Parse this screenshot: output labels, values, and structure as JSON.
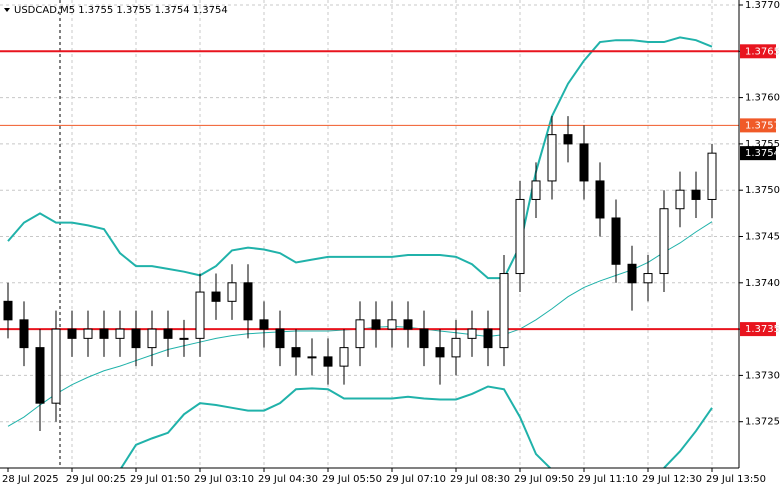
{
  "chart_data": {
    "type": "candlestick",
    "title": "USDCAD,M5 1.3755 1.3755 1.3754 1.3754",
    "categories": [
      "28 Jul 2025",
      null,
      null,
      null,
      "29 Jul 00:25",
      null,
      null,
      null,
      "29 Jul 01:50",
      null,
      null,
      null,
      "29 Jul 03:10",
      null,
      null,
      null,
      "29 Jul 04:30",
      null,
      null,
      null,
      "29 Jul 05:50",
      null,
      null,
      null,
      "29 Jul 07:10",
      null,
      null,
      null,
      "29 Jul 08:30",
      null,
      null,
      null,
      "29 Jul 09:50",
      null,
      null,
      null,
      "29 Jul 11:10",
      null,
      null,
      null,
      "29 Jul 12:30",
      null,
      null,
      null,
      "29 Jul 13:50"
    ],
    "open": [
      1.3738,
      1.3736,
      1.3733,
      1.3727,
      1.3735,
      1.3734,
      1.3735,
      1.3734,
      1.3735,
      1.3733,
      1.3735,
      1.3734,
      1.3734,
      1.3739,
      1.3738,
      1.374,
      1.3736,
      1.3735,
      1.3733,
      1.3732,
      1.3732,
      1.3731,
      1.3733,
      1.3736,
      1.3735,
      1.3736,
      1.3735,
      1.3733,
      1.3732,
      1.3734,
      1.3735,
      1.3733,
      1.3741,
      1.3749,
      1.3751,
      1.3756,
      1.3755,
      1.3751,
      1.3747,
      1.3742,
      1.374,
      1.3741,
      1.3748,
      1.375,
      1.3749
    ],
    "high": [
      1.374,
      1.3738,
      1.3735,
      1.3737,
      1.3737,
      1.3737,
      1.3737,
      1.3737,
      1.3737,
      1.3737,
      1.3737,
      1.3736,
      1.3741,
      1.3741,
      1.3742,
      1.3742,
      1.3738,
      1.3737,
      1.3735,
      1.3734,
      1.3734,
      1.3735,
      1.3738,
      1.3738,
      1.3738,
      1.3738,
      1.3737,
      1.3735,
      1.3736,
      1.3737,
      1.3737,
      1.3743,
      1.3751,
      1.3753,
      1.3758,
      1.3758,
      1.3757,
      1.3753,
      1.3749,
      1.3744,
      1.3743,
      1.375,
      1.3752,
      1.3752,
      1.3755
    ],
    "low": [
      1.3734,
      1.3731,
      1.3724,
      1.3725,
      1.3732,
      1.3732,
      1.3732,
      1.3732,
      1.3731,
      1.3731,
      1.3732,
      1.3732,
      1.3732,
      1.3736,
      1.3736,
      1.3734,
      1.3733,
      1.3731,
      1.373,
      1.373,
      1.3729,
      1.3729,
      1.3731,
      1.3733,
      1.3733,
      1.3733,
      1.3731,
      1.3729,
      1.373,
      1.3732,
      1.3731,
      1.3731,
      1.3739,
      1.3747,
      1.3749,
      1.3753,
      1.3749,
      1.3745,
      1.374,
      1.3737,
      1.3738,
      1.3739,
      1.3746,
      1.3747,
      1.3747
    ],
    "close": [
      1.3736,
      1.3733,
      1.3727,
      1.3735,
      1.3734,
      1.3735,
      1.3734,
      1.3735,
      1.3733,
      1.3735,
      1.3734,
      1.3734,
      1.3739,
      1.3738,
      1.374,
      1.3736,
      1.3735,
      1.3733,
      1.3732,
      1.3732,
      1.3731,
      1.3733,
      1.3736,
      1.3735,
      1.3736,
      1.3735,
      1.3733,
      1.3732,
      1.3734,
      1.3735,
      1.3733,
      1.3741,
      1.3749,
      1.3751,
      1.3756,
      1.3755,
      1.3751,
      1.3747,
      1.3742,
      1.374,
      1.3741,
      1.3748,
      1.375,
      1.3749,
      1.3754
    ],
    "up_color": "#ffffff",
    "down_color": "#000000",
    "bands": {
      "color": "#20b2aa",
      "upper": [
        1.37445,
        1.37465,
        1.37475,
        1.37465,
        1.37465,
        1.37462,
        1.37458,
        1.37432,
        1.37418,
        1.37418,
        1.37415,
        1.37412,
        1.37408,
        1.37418,
        1.37435,
        1.37438,
        1.37436,
        1.37432,
        1.37422,
        1.37425,
        1.37428,
        1.37428,
        1.37428,
        1.37428,
        1.37428,
        1.3743,
        1.3743,
        1.3743,
        1.37428,
        1.3742,
        1.37405,
        1.37405,
        1.3744,
        1.3752,
        1.3758,
        1.37615,
        1.3764,
        1.3766,
        1.37662,
        1.37662,
        1.3766,
        1.3766,
        1.37665,
        1.37662,
        1.37655
      ],
      "lower": [
        null,
        null,
        null,
        null,
        null,
        null,
        null,
        1.37198,
        1.37225,
        1.37232,
        1.37238,
        1.37258,
        1.3727,
        1.37268,
        1.37265,
        1.37262,
        1.37262,
        1.3727,
        1.37285,
        1.37286,
        1.37285,
        1.37275,
        1.37275,
        1.37275,
        1.37275,
        1.37277,
        1.37275,
        1.37274,
        1.37274,
        1.3728,
        1.37288,
        1.37285,
        1.37255,
        1.37215,
        1.37198,
        null,
        null,
        null,
        null,
        null,
        null,
        1.372,
        1.37218,
        1.3724,
        1.37265
      ]
    },
    "ma": {
      "color": "#20b2aa",
      "values": [
        1.37245,
        1.37255,
        1.37268,
        1.3728,
        1.3729,
        1.37298,
        1.37305,
        1.3731,
        1.37316,
        1.37322,
        1.37328,
        1.37332,
        1.37336,
        1.3734,
        1.37343,
        1.37345,
        1.37346,
        1.37347,
        1.37348,
        1.37348,
        1.37348,
        1.37349,
        1.3735,
        1.37352,
        1.37353,
        1.37352,
        1.3735,
        1.37348,
        1.37346,
        1.37344,
        1.37342,
        1.37344,
        1.3735,
        1.3736,
        1.37372,
        1.37385,
        1.37395,
        1.37402,
        1.37408,
        1.37414,
        1.37422,
        1.37433,
        1.37443,
        1.37455,
        1.37466
      ]
    },
    "levels": [
      {
        "value": 1.3765,
        "color": "#e8141e",
        "width": 2
      },
      {
        "value": 1.3757,
        "color": "#f05a28",
        "width": 1
      },
      {
        "value": 1.3735,
        "color": "#e8141e",
        "width": 2
      }
    ],
    "price_label": 1.3754,
    "ylim": [
      1.372,
      1.377
    ],
    "yticks": [
      {
        "value": 1.377,
        "label": "1.3770"
      },
      1.3765,
      {
        "value": 1.376,
        "label": "1.3760"
      },
      1.3755,
      {
        "value": 1.375,
        "label": "1.3750"
      },
      1.3745,
      {
        "value": 1.374,
        "label": "1.3740"
      },
      1.3735,
      {
        "value": 1.373,
        "label": "1.3730"
      },
      1.3725
    ],
    "grid": true
  }
}
